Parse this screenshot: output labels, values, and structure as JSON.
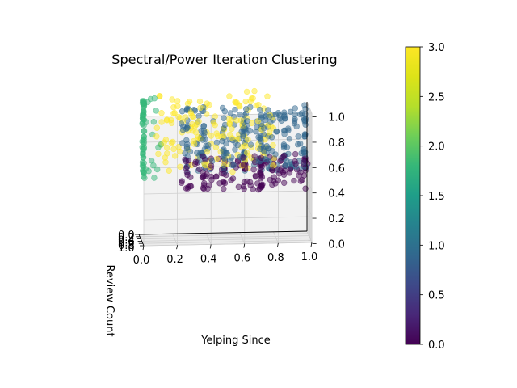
{
  "chart_data": {
    "type": "scatter",
    "projection": "3d",
    "title": "Spectral/Power Iteration Clustering",
    "xlabel": "Yelping Since",
    "ylabel": "Review Count",
    "zlabel": "",
    "xlim": [
      0.0,
      1.0
    ],
    "ylim": [
      0.0,
      1.0
    ],
    "zlim": [
      0.0,
      1.0
    ],
    "x_ticks": [
      "0.0",
      "0.2",
      "0.4",
      "0.6",
      "0.8",
      "1.0"
    ],
    "y_ticks": [
      "0.0",
      "0.2",
      "0.4",
      "0.6",
      "0.8",
      "1.0"
    ],
    "z_ticks": [
      "0.0",
      "0.2",
      "0.4",
      "0.6",
      "0.8",
      "1.0"
    ],
    "grid": true,
    "colormap": "viridis",
    "colorbar": {
      "min": 0.0,
      "max": 3.0,
      "ticks": [
        "0.0",
        "0.5",
        "1.0",
        "1.5",
        "2.0",
        "2.5",
        "3.0"
      ]
    },
    "clusters": [
      {
        "label": 0,
        "color": "#440154",
        "x_range": [
          0.25,
          1.0
        ],
        "z_range": [
          0.35,
          0.6
        ],
        "approx_points": 160
      },
      {
        "label": 1,
        "color": "#31688e",
        "x_range": [
          0.25,
          1.0
        ],
        "z_range": [
          0.5,
          1.0
        ],
        "approx_points": 260
      },
      {
        "label": 2,
        "color": "#35b779",
        "x_range": [
          0.0,
          0.15
        ],
        "z_range": [
          0.45,
          1.1
        ],
        "approx_points": 70
      },
      {
        "label": 3,
        "color": "#fde725",
        "x_range": [
          0.1,
          0.8
        ],
        "z_range": [
          0.5,
          1.1
        ],
        "approx_points": 160
      }
    ]
  }
}
